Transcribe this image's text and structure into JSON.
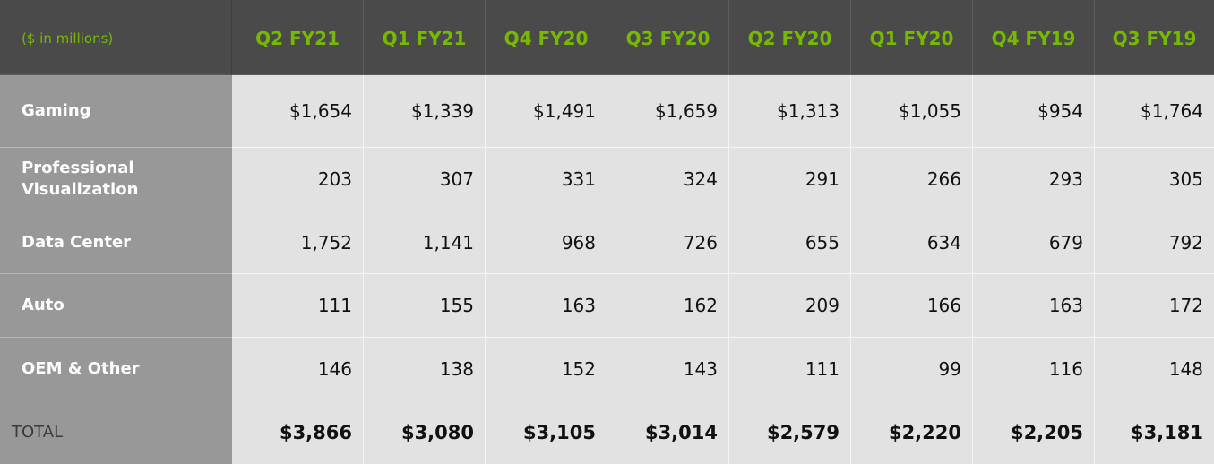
{
  "chart_data": {
    "type": "table",
    "corner_label": "($ in millions)",
    "columns": [
      "Q2 FY21",
      "Q1 FY21",
      "Q4 FY20",
      "Q3 FY20",
      "Q2 FY20",
      "Q1 FY20",
      "Q4 FY19",
      "Q3 FY19"
    ],
    "rows": [
      {
        "label": "Gaming",
        "values": [
          "$1,654",
          "$1,339",
          "$1,491",
          "$1,659",
          "$1,313",
          "$1,055",
          "$954",
          "$1,764"
        ]
      },
      {
        "label": "Professional\nVisualization",
        "values": [
          "203",
          "307",
          "331",
          "324",
          "291",
          "266",
          "293",
          "305"
        ]
      },
      {
        "label": "Data Center",
        "values": [
          "1,752",
          "1,141",
          "968",
          "726",
          "655",
          "634",
          "679",
          "792"
        ]
      },
      {
        "label": "Auto",
        "values": [
          "111",
          "155",
          "163",
          "162",
          "209",
          "166",
          "163",
          "172"
        ]
      },
      {
        "label": "OEM & Other",
        "values": [
          "146",
          "138",
          "152",
          "143",
          "111",
          "99",
          "116",
          "148"
        ]
      }
    ],
    "total": {
      "label": "TOTAL",
      "values": [
        "$3,866",
        "$3,080",
        "$3,105",
        "$3,014",
        "$2,579",
        "$2,220",
        "$2,205",
        "$3,181"
      ]
    }
  },
  "colors": {
    "header_bg": "#4a4a4a",
    "header_text": "#76b900",
    "label_bg": "#989898",
    "cell_bg": "#e2e2e2"
  }
}
